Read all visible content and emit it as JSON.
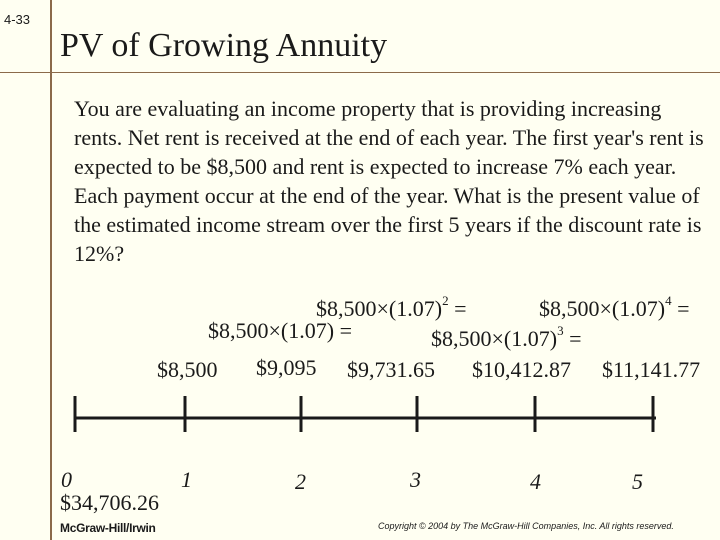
{
  "slide_number": "4-33",
  "title": "PV of Growing Annuity",
  "body": "You are evaluating an income property that is providing increasing rents. Net rent is received at the end of each year. The first year's rent is expected to be $8,500 and rent is expected to increase 7% each year. Each payment occur at the end of the year. What is the present value of the estimated income stream over the first 5 years if the discount rate is 12%?",
  "formulas": {
    "f1_base": "$8,500×(1.07)",
    "f1_tail": " =",
    "f2_base": "$8,500×(1.07)",
    "f2_exp": "2",
    "f2_tail": " =",
    "f3_base": "$8,500×(1.07)",
    "f3_exp": "3",
    "f3_tail": " =",
    "f4_base": "$8,500×(1.07)",
    "f4_exp": "4",
    "f4_tail": " ="
  },
  "cash_flows": [
    "$8,500",
    "$9,095",
    "$9,731.65",
    "$10,412.87",
    "$11,141.77"
  ],
  "periods": [
    "0",
    "1",
    "2",
    "3",
    "4",
    "5"
  ],
  "present_value": "$34,706.26",
  "footer": {
    "publisher": "McGraw-Hill/Irwin",
    "copyright": "Copyright © 2004 by The McGraw-Hill Companies, Inc.  All rights reserved."
  }
}
